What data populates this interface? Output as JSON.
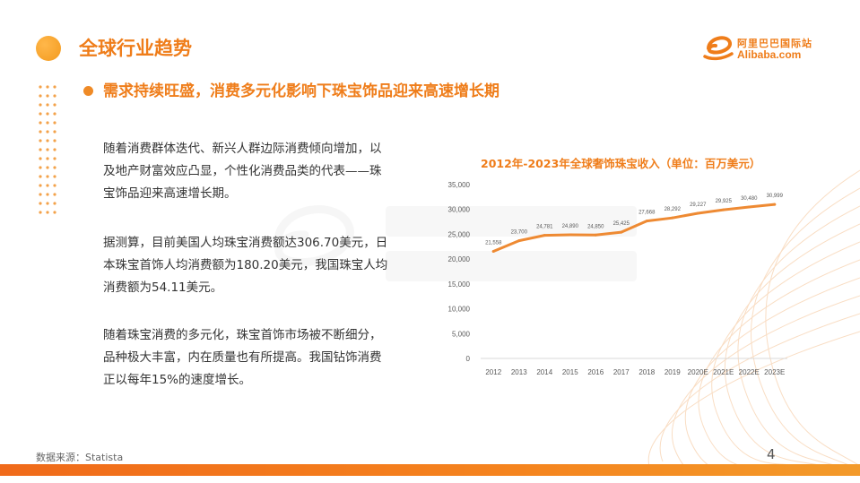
{
  "header": {
    "title": "全球行业趋势",
    "subtitle": "需求持续旺盛，消费多元化影响下珠宝饰品迎来高速增长期"
  },
  "logo": {
    "cn": "阿里巴巴国际站",
    "en": "Alibaba.com",
    "color": "#ef7d1a"
  },
  "body": {
    "paragraph_1_lines": [
      "随着消费群体迭代、新兴人群边际消费倾向增加，以",
      "及地产财富效应凸显，个性化消费品类的代表——珠",
      "宝饰品迎来高速增长期。"
    ],
    "paragraph_2_lines": [
      "据测算，目前美国人均珠宝消费额达306.70美元，日",
      "本珠宝首饰人均消费额为180.20美元，我国珠宝人均",
      "消费额为54.11美元。"
    ],
    "paragraph_3_lines": [
      "随着珠宝消费的多元化，珠宝首饰市场被不断细分，",
      "品种极大丰富，内在质量也有所提高。我国钻饰消费",
      "正以每年15%的速度增长。"
    ]
  },
  "footer": {
    "source": "数据来源：Statista",
    "page_number": "4"
  },
  "colors": {
    "accent": "#ef7d1a",
    "line": "#ee8a33",
    "footer_bar": "#f5841e"
  },
  "chart_data": {
    "type": "line",
    "title": "2012年-2023年全球奢饰珠宝收入（单位：百万美元）",
    "categories": [
      "2012",
      "2013",
      "2014",
      "2015",
      "2016",
      "2017",
      "2018",
      "2019",
      "2020E",
      "2021E",
      "2022E",
      "2023E"
    ],
    "series": [
      {
        "values": [
          21558,
          23700,
          24781,
          24890,
          24850,
          25425,
          27668,
          28292,
          29227,
          29925,
          30480,
          30999
        ],
        "labels": [
          "21,558",
          "23,700",
          "24,781",
          "24,890",
          "24,850",
          "25,425",
          "27,668",
          "28,292",
          "29,227",
          "29,925",
          "30,480",
          "30,999"
        ]
      }
    ],
    "ylim": [
      0,
      35000
    ],
    "yticks": [
      "0",
      "5,000",
      "10,000",
      "15,000",
      "20,000",
      "25,000",
      "30,000",
      "35,000"
    ],
    "grid": false,
    "legend": "none"
  }
}
